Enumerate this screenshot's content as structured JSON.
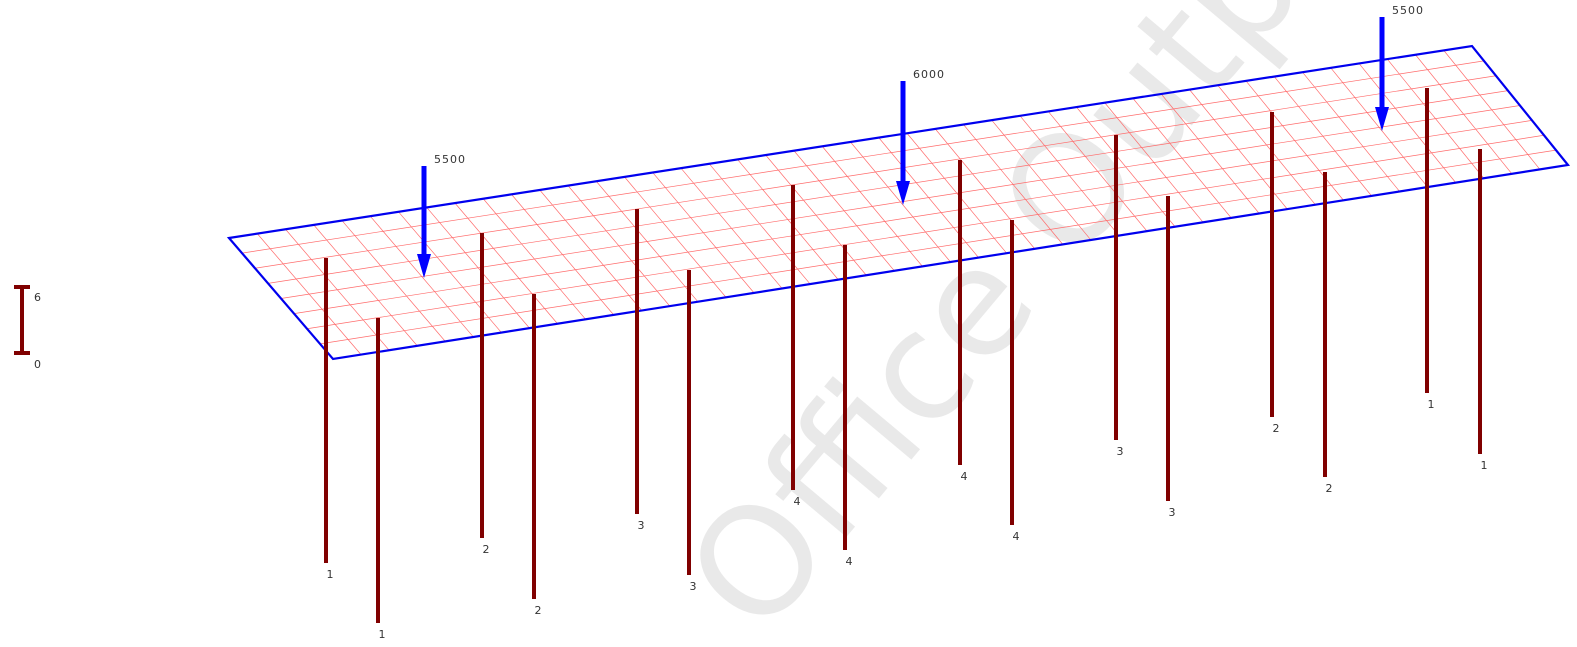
{
  "legend": {
    "max_label": "6",
    "min_label": "0",
    "bar_color": "#800000"
  },
  "colors": {
    "mesh": "#ff6b6b",
    "outline": "#0000ee",
    "load": "#0000ff",
    "pile": "#800000"
  },
  "mesh": {
    "long_divisions": 44,
    "short_divisions": 8
  },
  "loads": [
    {
      "value": "5500"
    },
    {
      "value": "6000"
    },
    {
      "value": "5500"
    }
  ],
  "piles": [
    {
      "label": "1"
    },
    {
      "label": "1"
    },
    {
      "label": "2"
    },
    {
      "label": "2"
    },
    {
      "label": "3"
    },
    {
      "label": "3"
    },
    {
      "label": "4"
    },
    {
      "label": "4"
    },
    {
      "label": "4"
    },
    {
      "label": "4"
    },
    {
      "label": "3"
    },
    {
      "label": "3"
    },
    {
      "label": "2"
    },
    {
      "label": "2"
    },
    {
      "label": "1"
    },
    {
      "label": "1"
    }
  ],
  "watermark": "Office Output Sample"
}
